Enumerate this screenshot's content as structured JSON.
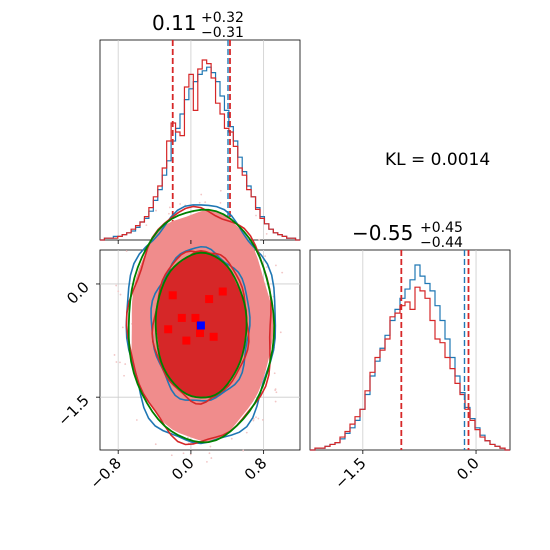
{
  "chart_data": {
    "type": "corner",
    "kl_label": "KL = 0.0014",
    "colors": {
      "series_a": "#1f77b4",
      "series_b": "#d62728",
      "series_c": "#008000",
      "truth": "#0000ff",
      "fill_dark": "#d62728",
      "fill_light": "#f08c8c"
    },
    "params": [
      {
        "title_main": "0.11",
        "title_plus": "+0.32",
        "title_minus": "−0.31",
        "median": 0.11,
        "lo": -0.2,
        "hi": 0.43,
        "range": [
          -1.0,
          1.2
        ],
        "ticks": [
          -0.8,
          0.0,
          0.8
        ],
        "tick_labels": [
          "−0.8",
          "0.0",
          "0.8"
        ]
      },
      {
        "title_main": "−0.55",
        "title_plus": "+0.45",
        "title_minus": "−0.44",
        "median": -0.55,
        "lo": -0.99,
        "hi": -0.1,
        "range": [
          -2.2,
          0.45
        ],
        "ticks": [
          -1.5,
          0.0
        ],
        "tick_labels": [
          "−1.5",
          "0.0"
        ]
      }
    ],
    "hist1_series_a": [
      0.0,
      0.01,
      0.01,
      0.02,
      0.02,
      0.03,
      0.04,
      0.05,
      0.07,
      0.1,
      0.12,
      0.16,
      0.22,
      0.28,
      0.36,
      0.44,
      0.55,
      0.62,
      0.7,
      0.78,
      0.84,
      0.88,
      0.92,
      0.94,
      0.96,
      0.93,
      0.88,
      0.8,
      0.72,
      0.63,
      0.55,
      0.46,
      0.38,
      0.3,
      0.24,
      0.18,
      0.13,
      0.09,
      0.06,
      0.04,
      0.03,
      0.02,
      0.01,
      0.01,
      0.0
    ],
    "hist1_series_b": [
      0.0,
      0.01,
      0.01,
      0.01,
      0.02,
      0.03,
      0.04,
      0.06,
      0.08,
      0.1,
      0.13,
      0.18,
      0.24,
      0.3,
      0.4,
      0.55,
      0.65,
      0.6,
      0.58,
      0.85,
      0.92,
      0.72,
      0.95,
      1.0,
      0.98,
      0.9,
      0.76,
      0.7,
      0.62,
      0.6,
      0.52,
      0.4,
      0.36,
      0.28,
      0.24,
      0.17,
      0.12,
      0.09,
      0.06,
      0.04,
      0.03,
      0.02,
      0.01,
      0.01,
      0.0
    ],
    "hist2_series_a": [
      0.0,
      0.01,
      0.01,
      0.02,
      0.03,
      0.04,
      0.06,
      0.09,
      0.12,
      0.16,
      0.22,
      0.3,
      0.4,
      0.48,
      0.55,
      0.62,
      0.7,
      0.76,
      0.82,
      0.87,
      0.92,
      1.0,
      0.94,
      0.9,
      0.86,
      0.78,
      0.7,
      0.6,
      0.5,
      0.4,
      0.31,
      0.23,
      0.17,
      0.12,
      0.08,
      0.05,
      0.03,
      0.02,
      0.01,
      0.0
    ],
    "hist2_series_b": [
      0.0,
      0.01,
      0.01,
      0.02,
      0.03,
      0.04,
      0.07,
      0.1,
      0.14,
      0.18,
      0.22,
      0.32,
      0.42,
      0.5,
      0.54,
      0.6,
      0.72,
      0.74,
      0.78,
      0.8,
      0.76,
      0.88,
      0.86,
      0.82,
      0.7,
      0.6,
      0.58,
      0.5,
      0.44,
      0.36,
      0.3,
      0.22,
      0.16,
      0.11,
      0.07,
      0.05,
      0.03,
      0.02,
      0.01,
      0.0
    ],
    "truth_point": {
      "x": 0.11,
      "y": -0.55
    },
    "samples_red": [
      [
        -0.2,
        -0.15
      ],
      [
        0.2,
        -0.2
      ],
      [
        0.35,
        -0.1
      ],
      [
        -0.1,
        -0.45
      ],
      [
        0.05,
        -0.45
      ],
      [
        -0.25,
        -0.6
      ],
      [
        0.25,
        -0.7
      ],
      [
        -0.05,
        -0.75
      ],
      [
        0.1,
        -0.65
      ],
      [
        0.1,
        -0.55
      ]
    ],
    "contours": {
      "fill_outer": {
        "cx": 0.11,
        "cy": -0.55,
        "rx": 0.78,
        "ry": 1.52
      },
      "fill_inner": {
        "cx": 0.11,
        "cy": -0.55,
        "rx": 0.5,
        "ry": 0.98
      },
      "series_c": [
        {
          "rx": 0.8,
          "ry": 1.54
        },
        {
          "rx": 0.5,
          "ry": 0.96
        }
      ],
      "series_a": [
        {
          "rx": 0.82,
          "ry": 1.58
        },
        {
          "rx": 0.54,
          "ry": 1.02
        }
      ],
      "series_b": [
        {
          "rx": 0.79,
          "ry": 1.55
        },
        {
          "rx": 0.52,
          "ry": 1.0
        }
      ]
    }
  }
}
